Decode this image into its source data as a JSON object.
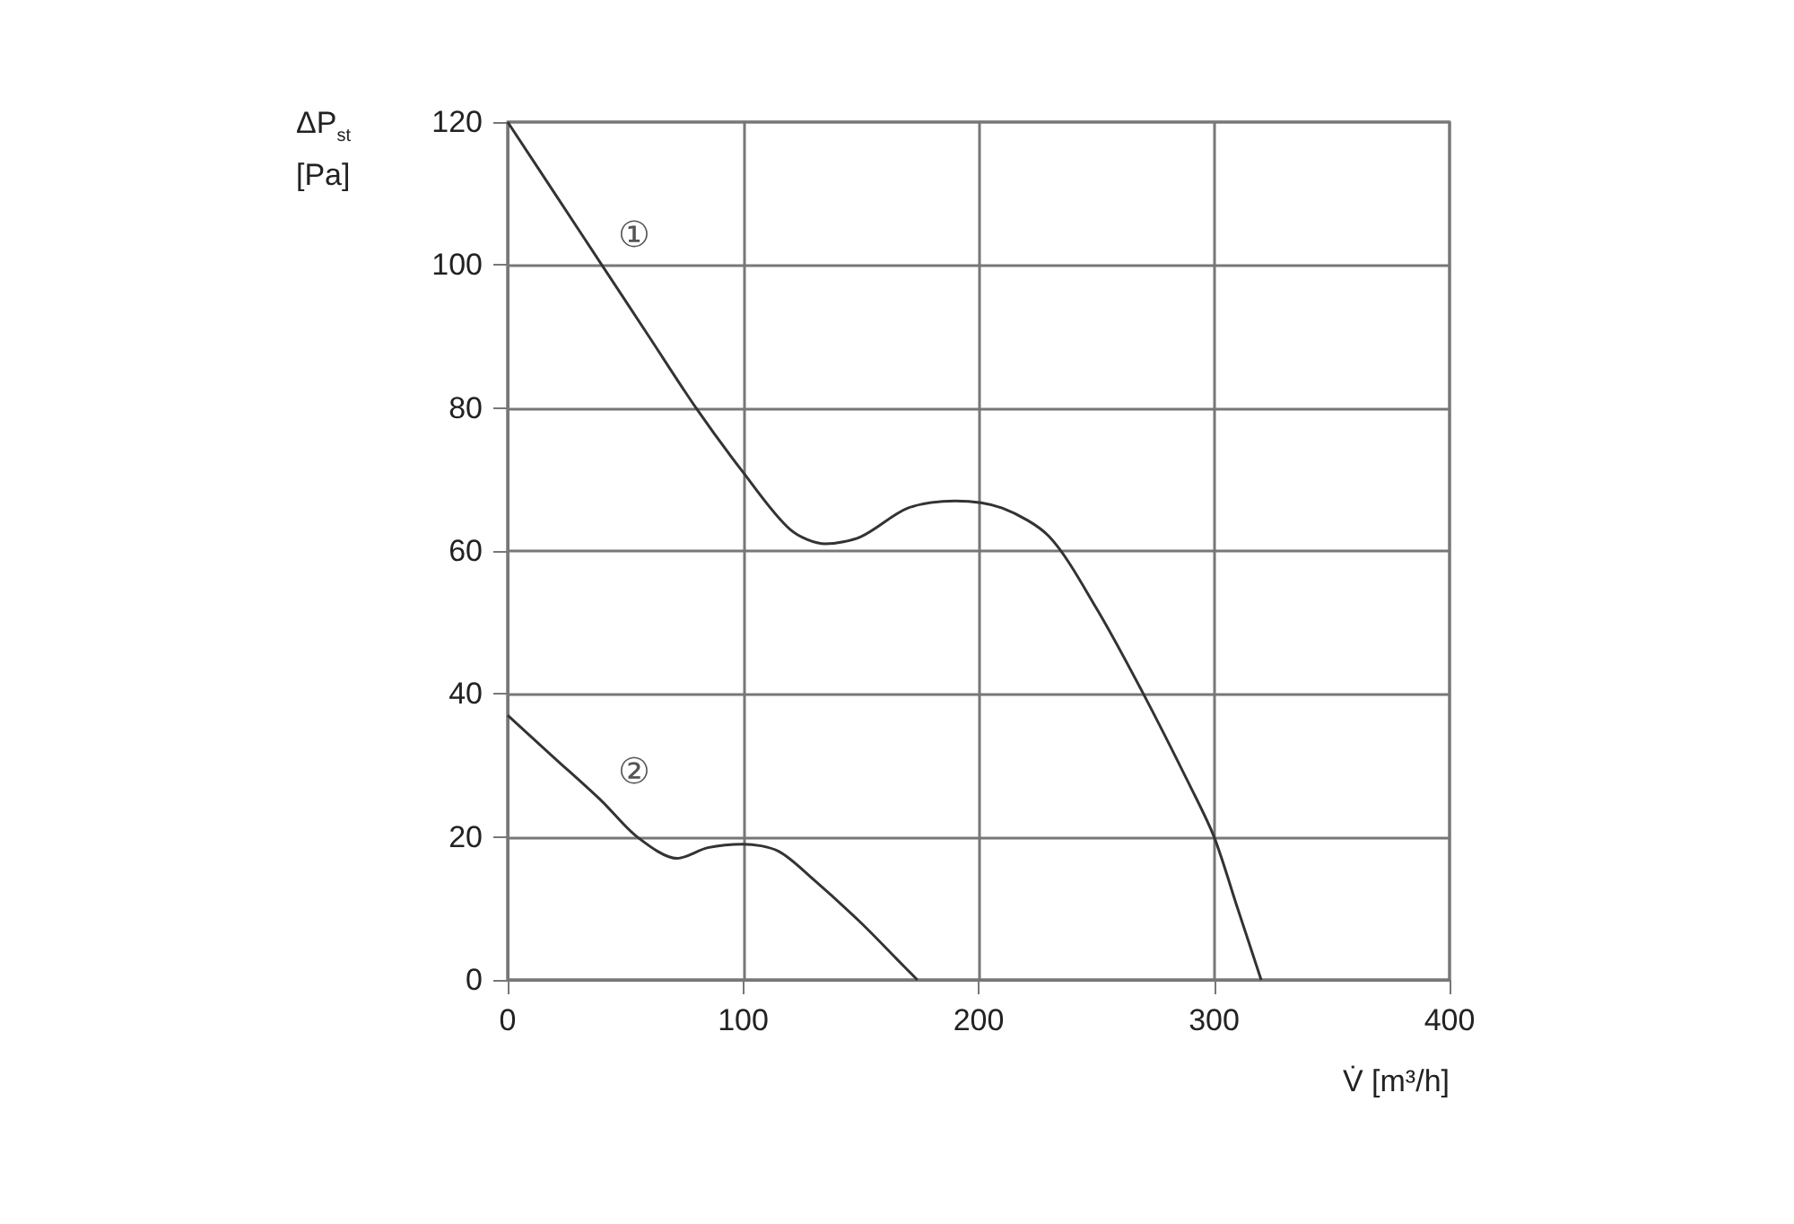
{
  "chart_data": {
    "type": "line",
    "xlabel": "V̇ [m³/h]",
    "ylabel": "ΔP$_{st}$\n[Pa]",
    "xlim": [
      0,
      400
    ],
    "xticks": [
      0,
      100,
      200,
      300,
      400
    ],
    "ylim": [
      0,
      120
    ],
    "yticks": [
      0,
      20,
      40,
      60,
      80,
      100,
      120
    ],
    "grid": true,
    "legend": false,
    "marker": "none",
    "line_style": "solid",
    "series": [
      {
        "name": "①",
        "color": "#333333",
        "x": [
          0,
          20,
          40,
          60,
          80,
          100,
          120,
          135,
          150,
          170,
          190,
          210,
          230,
          250,
          270,
          290,
          300,
          310,
          320
        ],
        "values": [
          120,
          110,
          100,
          90,
          80,
          71,
          63,
          61,
          62,
          66,
          67,
          66,
          62,
          52,
          40,
          27,
          20,
          10,
          0
        ]
      },
      {
        "name": "②",
        "color": "#333333",
        "x": [
          0,
          20,
          40,
          55,
          72,
          85,
          100,
          115,
          130,
          150,
          165,
          174
        ],
        "values": [
          37,
          31,
          25,
          20,
          17,
          18.5,
          19,
          18,
          14,
          8,
          3,
          0
        ]
      }
    ]
  }
}
